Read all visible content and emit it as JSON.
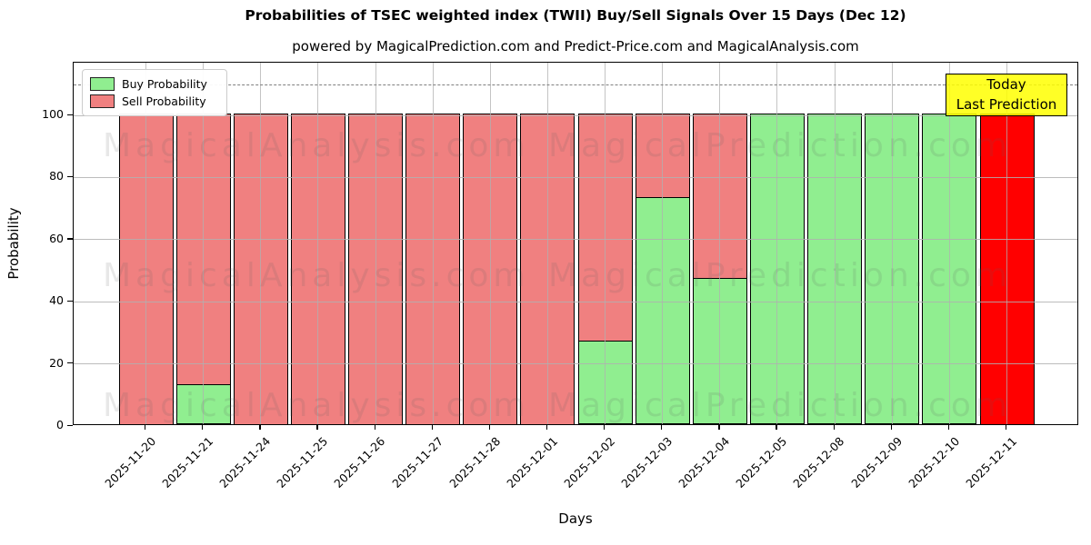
{
  "header": {
    "title": "Probabilities of TSEC weighted index (TWII) Buy/Sell Signals Over 15 Days (Dec 12)",
    "subtitle": "powered by MagicalPrediction.com and Predict-Price.com and MagicalAnalysis.com"
  },
  "legend": {
    "items": [
      {
        "label": "Buy Probability",
        "color": "#90EE90"
      },
      {
        "label": "Sell Probability",
        "color": "#F08080"
      }
    ]
  },
  "annotation": {
    "line1": "Today",
    "line2": "Last Prediction",
    "bg_color": "#FFFF00"
  },
  "axes": {
    "ylabel": "Probability",
    "xlabel": "Days",
    "yticks": [
      0,
      20,
      40,
      60,
      80,
      100
    ]
  },
  "watermarks": {
    "left": "MagicalAnalysis.com",
    "right": "MagicalPrediction.com"
  },
  "colors": {
    "buy": "#90EE90",
    "sell": "#F08080",
    "today_bar": "#FF0000",
    "bar_edge": "#000000",
    "grid": "#b0b0b0",
    "dashed_line": "#7f7f7f",
    "annotation_bg": "#FFFF00"
  },
  "chart_data": {
    "type": "bar",
    "stacked": true,
    "title": "Probabilities of TSEC weighted index (TWII) Buy/Sell Signals Over 15 Days (Dec 12)",
    "xlabel": "Days",
    "ylabel": "Probability",
    "categories": [
      "2025-11-20",
      "2025-11-21",
      "2025-11-24",
      "2025-11-25",
      "2025-11-26",
      "2025-11-27",
      "2025-11-28",
      "2025-12-01",
      "2025-12-02",
      "2025-12-03",
      "2025-12-04",
      "2025-12-05",
      "2025-12-08",
      "2025-12-09",
      "2025-12-10",
      "2025-12-11"
    ],
    "series": [
      {
        "name": "Buy Probability",
        "color": "#90EE90",
        "values": [
          0,
          13,
          0,
          0,
          0,
          0,
          0,
          0,
          27,
          73,
          47,
          100,
          100,
          100,
          100,
          0
        ]
      },
      {
        "name": "Sell Probability",
        "color": "#F08080",
        "values": [
          100,
          87,
          100,
          100,
          100,
          100,
          100,
          100,
          73,
          27,
          53,
          0,
          0,
          0,
          0,
          100
        ]
      }
    ],
    "today_bar": {
      "index": 15,
      "category": "2025-12-11",
      "color": "#FF0000",
      "total": 100
    },
    "ylim": [
      0,
      117
    ],
    "yticks": [
      0,
      20,
      40,
      60,
      80,
      100
    ],
    "dashed_line_y": 110,
    "grid": true,
    "legend_position": "upper left"
  }
}
